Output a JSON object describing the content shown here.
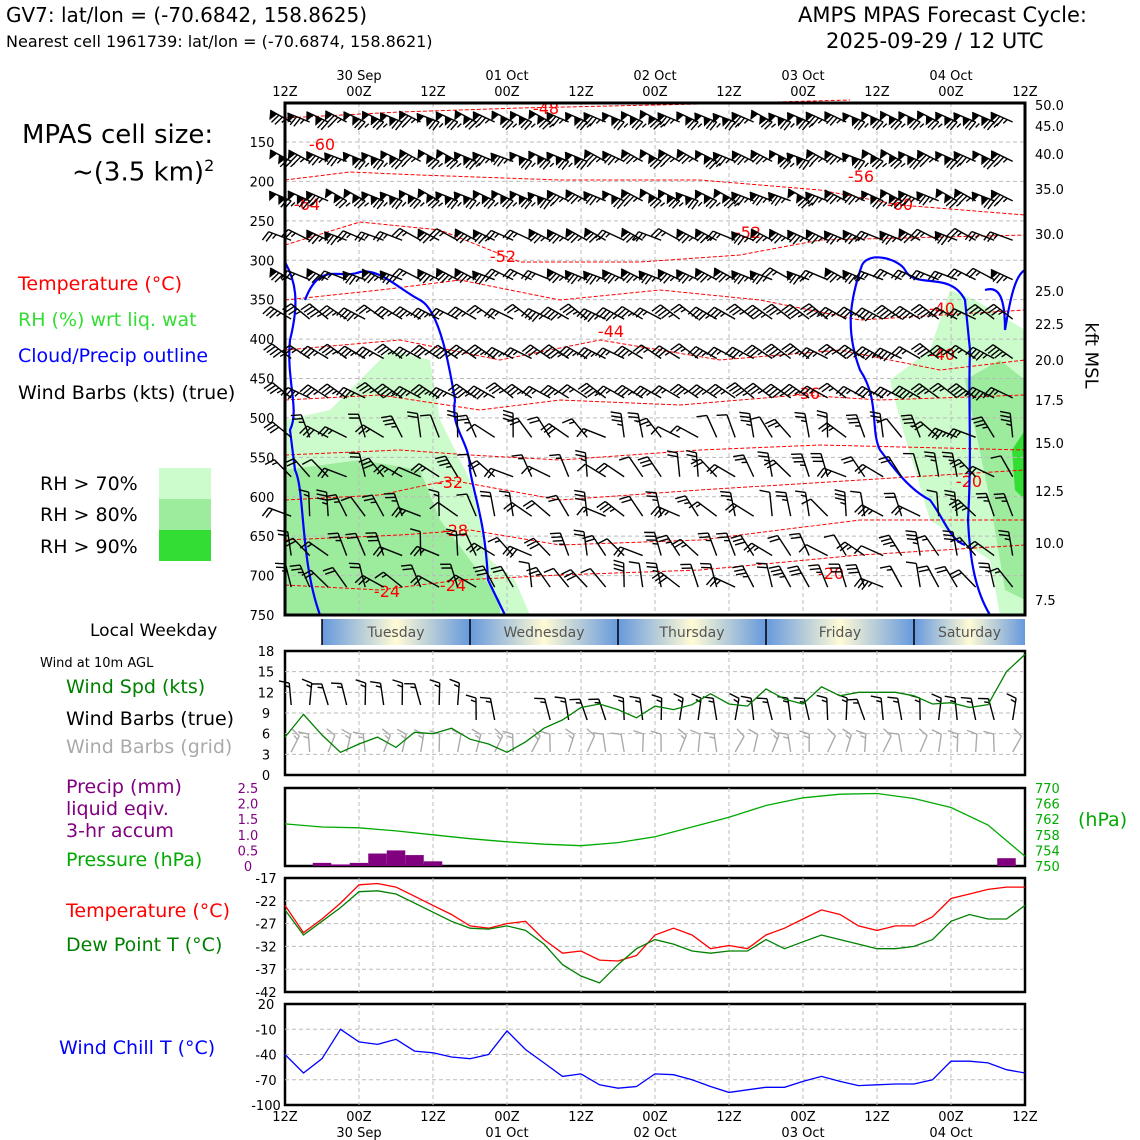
{
  "header": {
    "station": "GV7: lat/lon = (-70.6842, 158.8625)",
    "nearest": "Nearest cell 1961739: lat/lon = (-70.6874, 158.8621)",
    "title_line1": "AMPS MPAS Forecast Cycle:",
    "title_line2": "2025-09-29 / 12 UTC"
  },
  "cell_size": {
    "line1": "MPAS cell size:",
    "line2": "~(3.5 km)",
    "sup": "2"
  },
  "legend": {
    "temperature": "Temperature (°C)",
    "rh": "RH (%) wrt liq. wat",
    "cloud": "Cloud/Precip outline",
    "barbs": "Wind Barbs (kts) (true)",
    "rh70": "RH > 70%",
    "rh80": "RH > 80%",
    "rh90": "RH > 90%",
    "colors": {
      "temperature": "#ff0000",
      "rh_label": "#33dd33",
      "cloud": "#0000ff",
      "rh70": "#ccfbcc",
      "rh80": "#9deb9d",
      "rh90": "#33dd33"
    }
  },
  "time_axis": {
    "top_hours": [
      "12Z",
      "00Z",
      "12Z",
      "00Z",
      "12Z",
      "00Z",
      "12Z",
      "00Z",
      "12Z",
      "00Z",
      "12Z"
    ],
    "top_dates": [
      "30 Sep",
      "01 Oct",
      "02 Oct",
      "03 Oct",
      "04 Oct"
    ],
    "bottom_hours": [
      "12Z",
      "00Z",
      "12Z",
      "00Z",
      "12Z",
      "00Z",
      "12Z",
      "00Z",
      "12Z",
      "00Z",
      "12Z"
    ],
    "bottom_dates": [
      "30 Sep",
      "01 Oct",
      "02 Oct",
      "03 Oct",
      "04 Oct"
    ]
  },
  "pressure_axis": {
    "ticks": [
      "150",
      "200",
      "250",
      "300",
      "350",
      "400",
      "450",
      "500",
      "550",
      "600",
      "650",
      "700",
      "750"
    ]
  },
  "height_axis": {
    "label": "kft MSL",
    "ticks": [
      "50.0",
      "45.0",
      "40.0",
      "35.0",
      "30.0",
      "25.0",
      "22.5",
      "20.0",
      "17.5",
      "15.0",
      "12.5",
      "10.0",
      "7.5"
    ]
  },
  "weekday": {
    "label": "Local Weekday",
    "days": [
      "Tuesday",
      "Wednesday",
      "Thursday",
      "Friday",
      "Saturday"
    ]
  },
  "wind10m": {
    "heading": "Wind at 10m AGL",
    "speed_label": "Wind Spd (kts)",
    "true_label": "Wind Barbs (true)",
    "grid_label": "Wind Barbs (grid)",
    "yticks": [
      "0",
      "3",
      "6",
      "9",
      "12",
      "15",
      "18"
    ]
  },
  "precip": {
    "label1": "Precip (mm)",
    "label2": "liquid eqiv.",
    "label3": "3-hr accum",
    "pressure_label": "Pressure (hPa)",
    "hpa_unit": "(hPa)",
    "left_ticks": [
      "0",
      "0.5",
      "1.0",
      "1.5",
      "2.0",
      "2.5"
    ],
    "right_ticks": [
      "750",
      "754",
      "758",
      "762",
      "766",
      "770"
    ]
  },
  "temp_panel": {
    "t_label": "Temperature (°C)",
    "td_label": "Dew Point T (°C)",
    "yticks": [
      "-42",
      "-37",
      "-32",
      "-27",
      "-22",
      "-17"
    ]
  },
  "chill_panel": {
    "label": "Wind Chill T (°C)",
    "yticks": [
      "-100",
      "-70",
      "-40",
      "-10",
      "20"
    ]
  },
  "contour_labels": [
    "-60",
    "-48",
    "-64",
    "-56",
    "-60",
    "-52",
    "-52",
    "-44",
    "-40",
    "-40",
    "-36",
    "-32",
    "-28",
    "-24",
    "-24",
    "-20",
    "-20"
  ],
  "chart_data": [
    {
      "type": "line",
      "title": "Wind Spd (kts)",
      "x_hours_from_start": [
        0,
        3,
        6,
        9,
        12,
        15,
        18,
        21,
        24,
        27,
        30,
        33,
        36,
        39,
        42,
        45,
        48,
        51,
        54,
        57,
        60,
        63,
        66,
        69,
        72,
        75,
        78,
        81,
        84,
        87,
        90,
        93,
        96,
        99,
        102,
        105,
        108,
        111,
        114,
        117,
        120
      ],
      "series": [
        {
          "name": "Wind Spd (kts)",
          "color": "#008000",
          "values": [
            5.5,
            8.8,
            5.8,
            3.3,
            4.5,
            5.5,
            4.0,
            6.2,
            6.0,
            6.8,
            5.2,
            4.5,
            3.3,
            4.8,
            6.8,
            8.0,
            9.8,
            10.3,
            9.5,
            8.3,
            10.0,
            9.5,
            10.2,
            11.8,
            10.3,
            10.0,
            12.5,
            11.0,
            10.3,
            12.8,
            11.5,
            12.0,
            12.0,
            12.0,
            11.5,
            10.3,
            10.5,
            9.8,
            10.2,
            15.0,
            17.5
          ]
        }
      ],
      "ylim": [
        0,
        18
      ]
    },
    {
      "type": "bar",
      "title": "Precip (mm) liquid eqiv. 3-hr accum",
      "x_hours_from_start": [
        6,
        9,
        12,
        15,
        18,
        21,
        24,
        117
      ],
      "values": [
        0.1,
        0.05,
        0.1,
        0.4,
        0.5,
        0.35,
        0.15,
        0.25
      ],
      "color": "#800080",
      "ylim": [
        0,
        2.5
      ]
    },
    {
      "type": "line",
      "title": "Pressure (hPa)",
      "x_hours_from_start": [
        0,
        6,
        12,
        18,
        24,
        30,
        36,
        42,
        48,
        54,
        60,
        66,
        72,
        78,
        84,
        90,
        96,
        102,
        108,
        114,
        120
      ],
      "series": [
        {
          "name": "Pressure (hPa)",
          "color": "#00aa00",
          "values": [
            760.8,
            760.0,
            759.8,
            759.0,
            758.0,
            757.0,
            756.2,
            755.6,
            755.2,
            756.0,
            757.5,
            760.0,
            762.5,
            765.5,
            767.5,
            768.4,
            768.6,
            767.3,
            765.0,
            760.5,
            752.5
          ]
        }
      ],
      "ylim": [
        750,
        770
      ]
    },
    {
      "type": "line",
      "title": "Temperature / Dew Point (°C)",
      "x_hours_from_start": [
        0,
        3,
        6,
        9,
        12,
        15,
        18,
        21,
        24,
        27,
        30,
        33,
        36,
        39,
        42,
        45,
        48,
        51,
        54,
        57,
        60,
        63,
        66,
        69,
        72,
        75,
        78,
        81,
        84,
        87,
        90,
        93,
        96,
        99,
        102,
        105,
        108,
        111,
        114,
        117,
        120
      ],
      "series": [
        {
          "name": "Temperature (°C)",
          "color": "#ff0000",
          "values": [
            -23,
            -29,
            -26,
            -22.5,
            -18.5,
            -18.2,
            -19,
            -21,
            -23,
            -25,
            -27.5,
            -28,
            -27,
            -26.5,
            -30.5,
            -33.5,
            -33,
            -35,
            -35.2,
            -34,
            -29.5,
            -28,
            -29.5,
            -32.5,
            -31.8,
            -32.5,
            -29.5,
            -28,
            -26,
            -24,
            -25,
            -27.5,
            -28.5,
            -27.5,
            -27.5,
            -25.5,
            -21.5,
            -20.5,
            -19.5,
            -19.0,
            -19.0
          ]
        },
        {
          "name": "Dew Point T (°C)",
          "color": "#008000",
          "values": [
            -24,
            -29.5,
            -26.5,
            -23.5,
            -20,
            -19.8,
            -20.5,
            -22.5,
            -24.5,
            -26.5,
            -28,
            -28.2,
            -27.5,
            -28.5,
            -31.5,
            -36,
            -38.5,
            -40,
            -36,
            -32.5,
            -30.5,
            -31.5,
            -33,
            -33.5,
            -33,
            -33,
            -30.5,
            -32.5,
            -31,
            -29.5,
            -30.5,
            -31.5,
            -32.5,
            -32.5,
            -32,
            -30.5,
            -26.5,
            -25,
            -26,
            -26,
            -23
          ]
        }
      ],
      "ylim": [
        -42,
        -17
      ]
    },
    {
      "type": "line",
      "title": "Wind Chill T (°C)",
      "x_hours_from_start": [
        0,
        3,
        6,
        9,
        12,
        15,
        18,
        21,
        24,
        27,
        30,
        33,
        36,
        39,
        42,
        45,
        48,
        51,
        54,
        57,
        60,
        63,
        66,
        69,
        72,
        75,
        78,
        81,
        84,
        87,
        90,
        93,
        96,
        99,
        102,
        105,
        108,
        111,
        114,
        117,
        120
      ],
      "series": [
        {
          "name": "Wind Chill T (°C)",
          "color": "#0000ff",
          "values": [
            -40,
            -62,
            -45,
            -10,
            -25,
            -28,
            -22,
            -36,
            -38,
            -43,
            -45,
            -40,
            -12,
            -34,
            -50,
            -66,
            -63,
            -76,
            -80,
            -78,
            -63,
            -64,
            -70,
            -78,
            -85,
            -82,
            -79,
            -79,
            -72,
            -66,
            -72,
            -77,
            -76,
            -75,
            -75,
            -70,
            -48,
            -48,
            -50,
            -58,
            -62
          ]
        }
      ],
      "ylim": [
        -100,
        20
      ]
    }
  ]
}
